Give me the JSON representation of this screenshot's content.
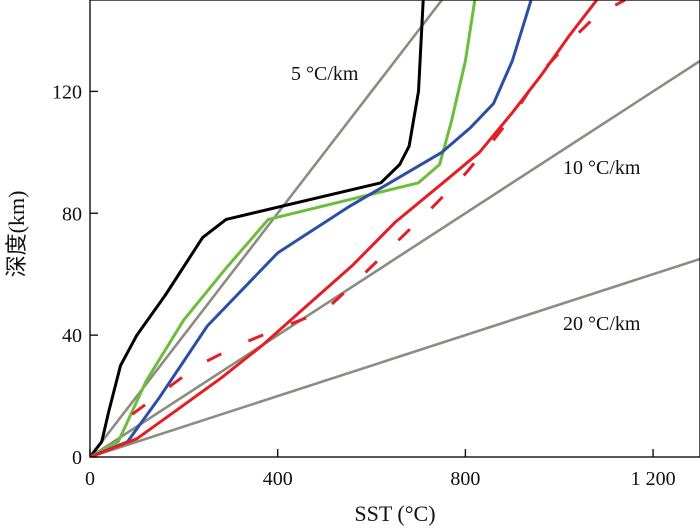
{
  "chart_data": {
    "type": "line",
    "title": "",
    "xlabel": "SST (°C)",
    "ylabel": "深度(km)",
    "xlim": [
      0,
      1300
    ],
    "ylim": [
      0,
      150
    ],
    "x_ticks": [
      {
        "value": 0,
        "label": "0"
      },
      {
        "value": 400,
        "label": "400"
      },
      {
        "value": 800,
        "label": "800"
      },
      {
        "value": 1200,
        "label": "1 200"
      }
    ],
    "y_ticks": [
      {
        "value": 0,
        "label": "0"
      },
      {
        "value": 40,
        "label": "40"
      },
      {
        "value": 80,
        "label": "80"
      },
      {
        "value": 120,
        "label": "120"
      }
    ],
    "geotherms": [
      {
        "gradient": 5,
        "label": "5 °C/km",
        "color": "#8c8c82"
      },
      {
        "gradient": 10,
        "label": "10 °C/km",
        "color": "#8c8c82"
      },
      {
        "gradient": 20,
        "label": "20 °C/km",
        "color": "#8c8c82"
      }
    ],
    "series": [
      {
        "color": "#000000",
        "dash": "none",
        "points": [
          [
            0,
            0
          ],
          [
            25,
            5
          ],
          [
            40,
            15
          ],
          [
            65,
            30
          ],
          [
            100,
            40
          ],
          [
            160,
            53
          ],
          [
            240,
            72
          ],
          [
            290,
            78
          ],
          [
            620,
            90
          ],
          [
            660,
            96
          ],
          [
            680,
            102
          ],
          [
            700,
            120
          ],
          [
            710,
            150
          ]
        ]
      },
      {
        "color": "#6cbd3c",
        "dash": "none",
        "points": [
          [
            0,
            0
          ],
          [
            60,
            5
          ],
          [
            120,
            25
          ],
          [
            200,
            45
          ],
          [
            290,
            62
          ],
          [
            380,
            78
          ],
          [
            700,
            90
          ],
          [
            745,
            96
          ],
          [
            770,
            110
          ],
          [
            800,
            130
          ],
          [
            820,
            150
          ]
        ]
      },
      {
        "color": "#2a4fa3",
        "dash": "none",
        "points": [
          [
            0,
            0
          ],
          [
            80,
            5
          ],
          [
            150,
            20
          ],
          [
            250,
            43
          ],
          [
            400,
            67
          ],
          [
            550,
            82
          ],
          [
            650,
            91
          ],
          [
            750,
            100
          ],
          [
            810,
            108
          ],
          [
            860,
            116
          ],
          [
            900,
            130
          ],
          [
            940,
            150
          ]
        ]
      },
      {
        "color": "#e31e24",
        "dash": "none",
        "points": [
          [
            0,
            0
          ],
          [
            100,
            6
          ],
          [
            190,
            16
          ],
          [
            280,
            26
          ],
          [
            370,
            37
          ],
          [
            450,
            48
          ],
          [
            560,
            63
          ],
          [
            650,
            77
          ],
          [
            760,
            91
          ],
          [
            830,
            100
          ],
          [
            900,
            113
          ],
          [
            960,
            125
          ],
          [
            1020,
            138
          ],
          [
            1080,
            150
          ]
        ]
      },
      {
        "color": "#e31e24",
        "dash": "16,30",
        "points": [
          [
            90,
            14
          ],
          [
            160,
            22
          ],
          [
            230,
            30
          ],
          [
            320,
            37
          ],
          [
            400,
            42
          ],
          [
            500,
            48
          ],
          [
            570,
            58
          ],
          [
            650,
            70
          ],
          [
            730,
            82
          ],
          [
            800,
            93
          ],
          [
            860,
            104
          ],
          [
            910,
            114
          ],
          [
            960,
            126
          ],
          [
            1020,
            136
          ],
          [
            1080,
            145
          ],
          [
            1140,
            150
          ]
        ]
      }
    ]
  }
}
